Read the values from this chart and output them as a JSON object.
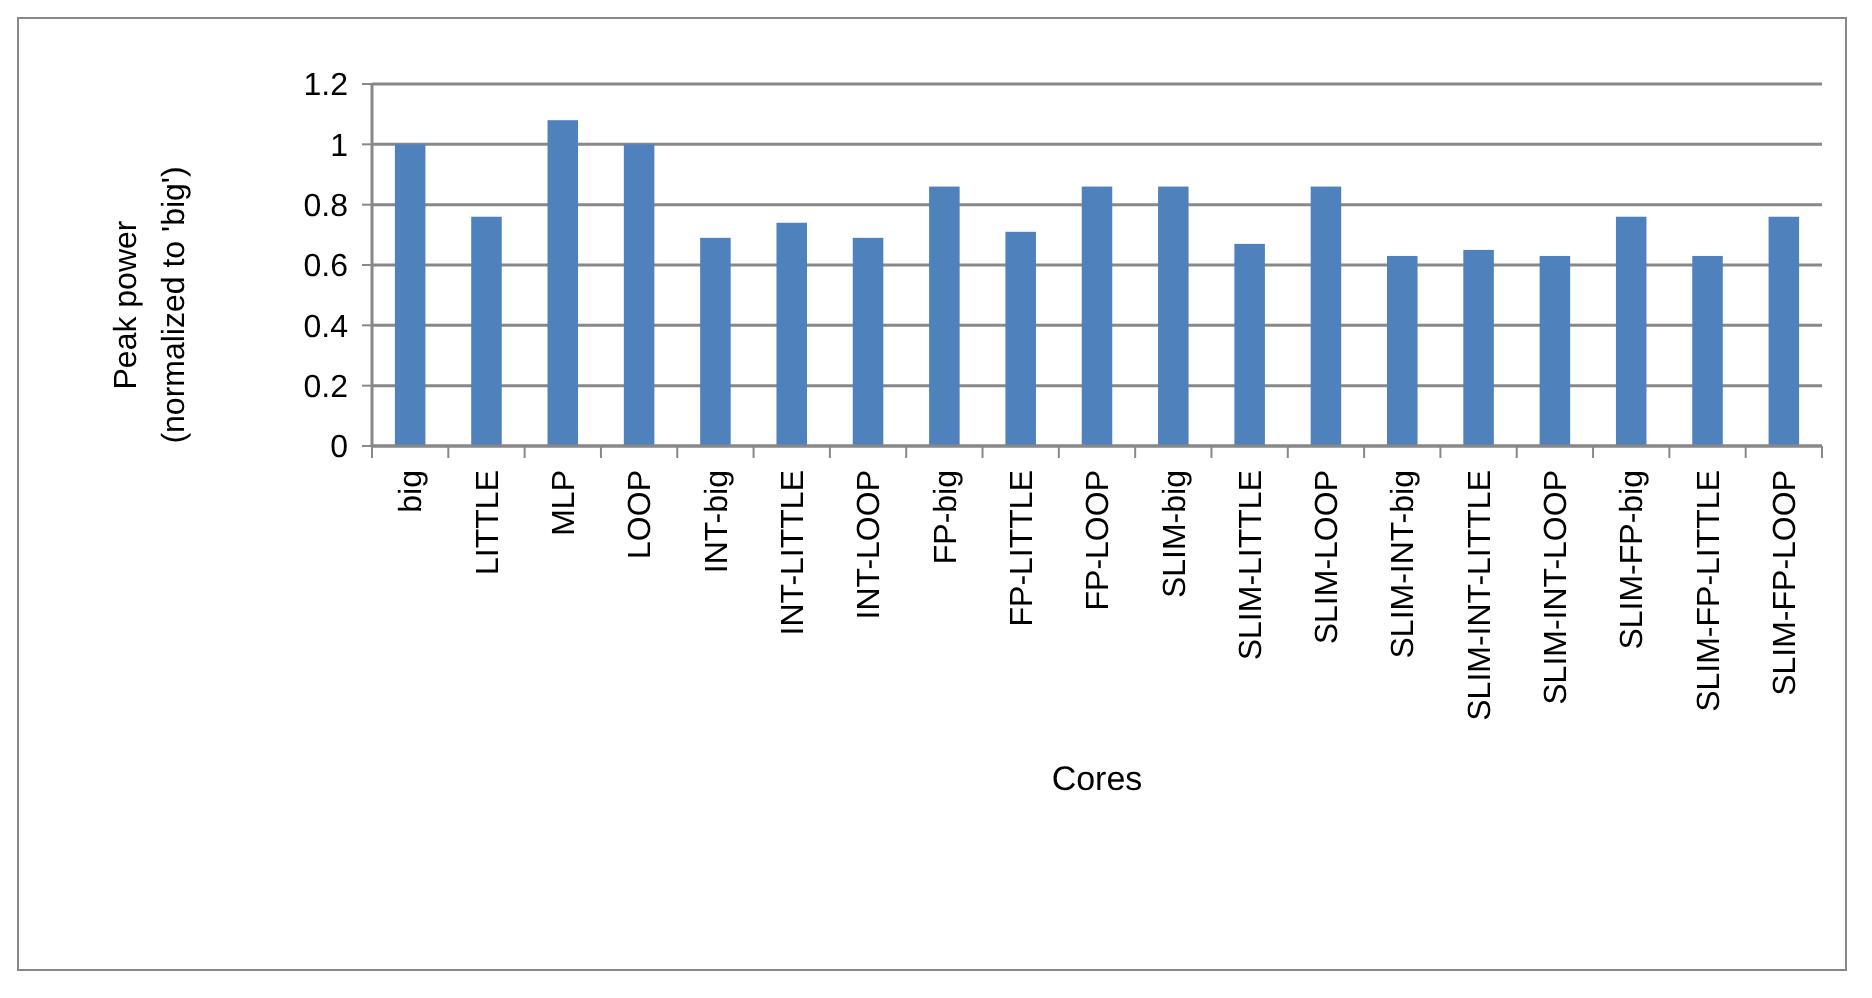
{
  "chart_data": {
    "type": "bar",
    "xlabel": "Cores",
    "ylabel": "Peak power\n(normalized to 'big')",
    "categories": [
      "big",
      "LITTLE",
      "MLP",
      "LOOP",
      "INT-big",
      "INT-LITTLE",
      "INT-LOOP",
      "FP-big",
      "FP-LITTLE",
      "FP-LOOP",
      "SLIM-big",
      "SLIM-LITTLE",
      "SLIM-LOOP",
      "SLIM-INT-big",
      "SLIM-INT-LITTLE",
      "SLIM-INT-LOOP",
      "SLIM-FP-big",
      "SLIM-FP-LITTLE",
      "SLIM-FP-LOOP"
    ],
    "values": [
      1,
      0.76,
      1.08,
      1,
      0.69,
      0.74,
      0.69,
      0.86,
      0.71,
      0.86,
      0.86,
      0.67,
      0.86,
      0.63,
      0.65,
      0.63,
      0.76,
      0.63,
      0.76
    ],
    "color": "#4f81bd",
    "ylim": [
      0,
      1.2
    ],
    "yticks": [
      0,
      0.2,
      0.4,
      0.6,
      0.8,
      1,
      1.2
    ],
    "grid": "y"
  }
}
